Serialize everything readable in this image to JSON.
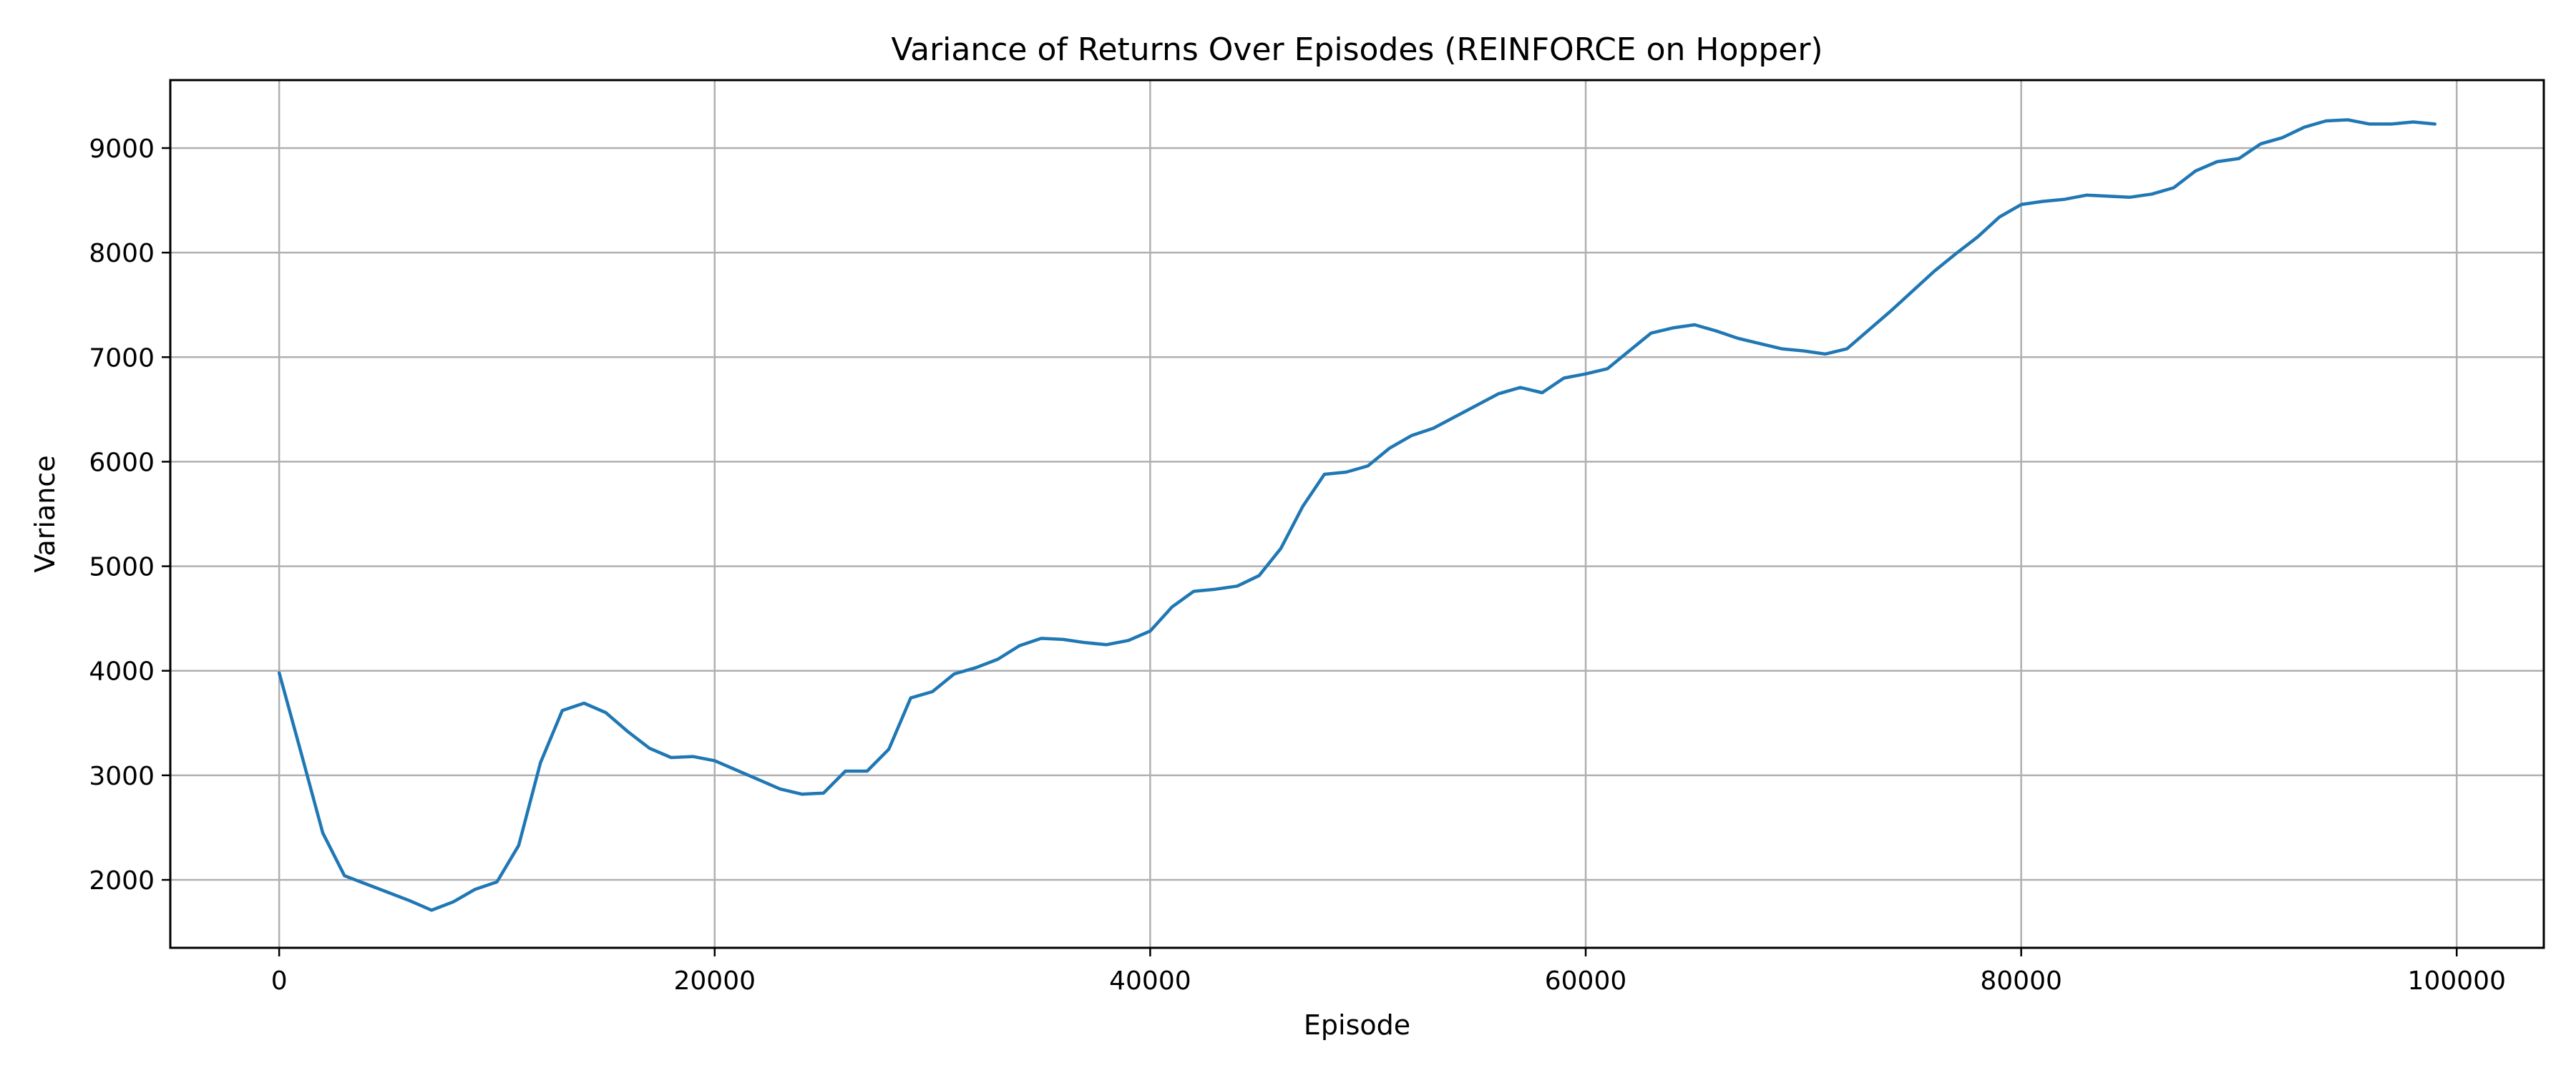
{
  "chart_data": {
    "type": "line",
    "title": "Variance of Returns Over Episodes (REINFORCE on Hopper)",
    "xlabel": "Episode",
    "ylabel": "Variance",
    "xlim": [
      -5000,
      104000
    ],
    "ylim": [
      1350,
      9650
    ],
    "xticks": [
      0,
      20000,
      40000,
      60000,
      80000,
      100000
    ],
    "xtick_labels": [
      "0",
      "20000",
      "40000",
      "60000",
      "80000",
      "100000"
    ],
    "yticks": [
      2000,
      3000,
      4000,
      5000,
      6000,
      7000,
      8000,
      9000
    ],
    "ytick_labels": [
      "2000",
      "3000",
      "4000",
      "5000",
      "6000",
      "7000",
      "8000",
      "9000"
    ],
    "grid": true,
    "series": [
      {
        "color": "#1f77b4",
        "x": [
          0,
          1000,
          2000,
          3000,
          4000,
          5000,
          6000,
          7000,
          8000,
          9000,
          10000,
          11000,
          12000,
          13000,
          14000,
          15000,
          16000,
          17000,
          18000,
          19000,
          20000,
          21000,
          22000,
          23000,
          24000,
          25000,
          26000,
          27000,
          28000,
          29000,
          30000,
          31000,
          32000,
          33000,
          34000,
          35000,
          36000,
          37000,
          38000,
          39000,
          40000,
          41000,
          42000,
          43000,
          44000,
          45000,
          46000,
          47000,
          48000,
          49000,
          50000,
          51000,
          52000,
          53000,
          54000,
          55000,
          56000,
          57000,
          58000,
          59000,
          60000,
          61000,
          62000,
          63000,
          64000,
          65000,
          66000,
          67000,
          68000,
          69000,
          70000,
          71000,
          72000,
          73000,
          74000,
          75000,
          76000,
          77000,
          78000,
          79000,
          80000,
          81000,
          82000,
          83000,
          84000,
          85000,
          86000,
          87000,
          88000,
          89000,
          90000,
          91000,
          92000,
          93000,
          94000,
          95000,
          96000,
          97000,
          98000,
          99000
        ],
        "y": [
          3980,
          3220,
          2450,
          2040,
          1960,
          1880,
          1800,
          1710,
          1790,
          1910,
          1980,
          2330,
          3120,
          3620,
          3690,
          3600,
          3420,
          3260,
          3170,
          3180,
          3140,
          3050,
          2960,
          2870,
          2820,
          2830,
          3040,
          3040,
          3250,
          3740,
          3800,
          3970,
          4030,
          4110,
          4240,
          4310,
          4300,
          4270,
          4250,
          4290,
          4380,
          4610,
          4760,
          4780,
          4810,
          4910,
          5170,
          5570,
          5880,
          5900,
          5960,
          6130,
          6250,
          6320,
          6430,
          6540,
          6650,
          6710,
          6660,
          6800,
          6840,
          6890,
          7060,
          7230,
          7280,
          7310,
          7250,
          7180,
          7130,
          7080,
          7060,
          7030,
          7080,
          7260,
          7440,
          7630,
          7820,
          7990,
          8150,
          8340,
          8460,
          8490,
          8510,
          8550,
          8540,
          8530,
          8560,
          8620,
          8780,
          8870,
          8900,
          9040,
          9100,
          9200,
          9260,
          9270,
          9230,
          9230,
          9250,
          9230
        ]
      }
    ]
  }
}
